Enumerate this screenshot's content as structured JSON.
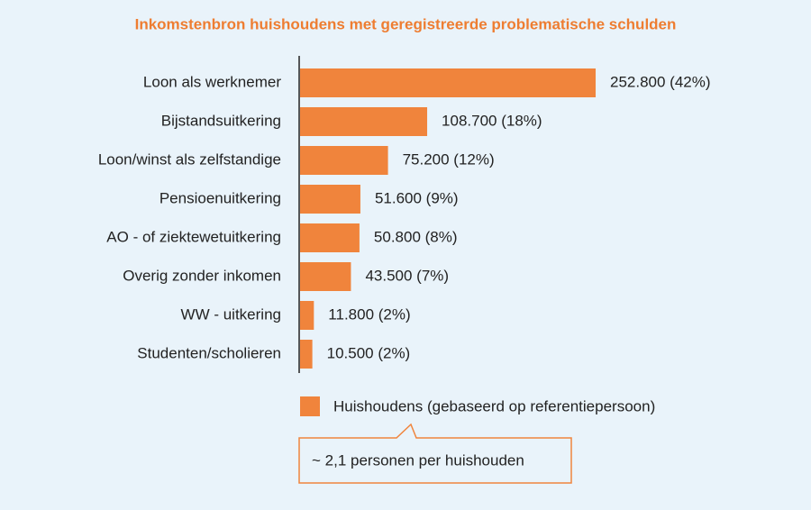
{
  "chart_data": {
    "type": "bar",
    "orientation": "horizontal",
    "title": "Inkomstenbron huishoudens met geregistreerde problematische schulden",
    "categories": [
      "Loon als werknemer",
      "Bijstandsuitkering",
      "Loon/winst als zelfstandige",
      "Pensioenuitkering",
      "AO - of ziektewetuitkering",
      "Overig zonder inkomen",
      "WW - uitkering",
      "Studenten/scholieren"
    ],
    "series": [
      {
        "name": "Huishoudens (gebaseerd op referentiepersoon)",
        "color": "#f0843c",
        "values": [
          252800,
          108700,
          75200,
          51600,
          50800,
          43500,
          11800,
          10500
        ],
        "value_labels": [
          "252.800 (42%)",
          "108.700 (18%)",
          "75.200 (12%)",
          "51.600 (9%)",
          "50.800 (8%)",
          "43.500 (7%)",
          "11.800 (2%)",
          "10.500 (2%)"
        ]
      }
    ],
    "annotation": "~ 2,1 personen per huishouden"
  }
}
